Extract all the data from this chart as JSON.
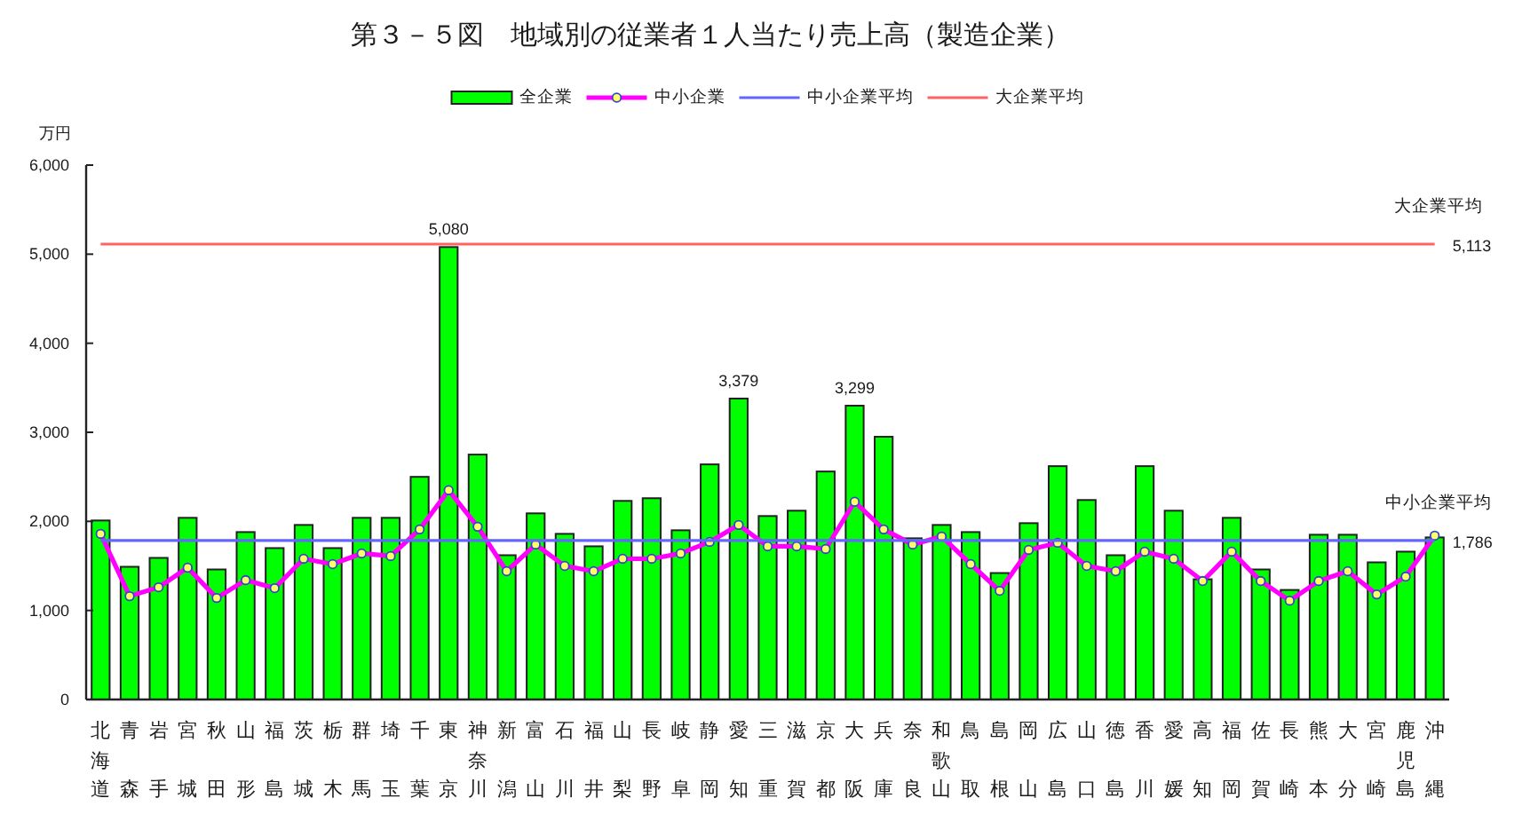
{
  "chart_data": {
    "type": "bar",
    "title": "第３－５図　地域別の従業者１人当たり売上高（製造企業）",
    "ylabel": "万円",
    "categories": [
      "北海道",
      "青森",
      "岩手",
      "宮城",
      "秋田",
      "山形",
      "福島",
      "茨城",
      "栃木",
      "群馬",
      "埼玉",
      "千葉",
      "東京",
      "神奈川",
      "新潟",
      "富山",
      "石川",
      "福井",
      "山梨",
      "長野",
      "岐阜",
      "静岡",
      "愛知",
      "三重",
      "滋賀",
      "京都",
      "大阪",
      "兵庫",
      "奈良",
      "和歌山",
      "鳥取",
      "島根",
      "岡山",
      "広島",
      "山口",
      "徳島",
      "香川",
      "愛媛",
      "高知",
      "福岡",
      "佐賀",
      "長崎",
      "熊本",
      "大分",
      "宮崎",
      "鹿児島",
      "沖縄"
    ],
    "series": [
      {
        "name": "全企業",
        "color": "#00ff00",
        "values": [
          2010,
          1490,
          1590,
          2040,
          1460,
          1880,
          1700,
          1960,
          1700,
          2040,
          2040,
          2500,
          5080,
          2750,
          1620,
          2090,
          1860,
          1720,
          2230,
          2260,
          1900,
          2640,
          3379,
          2060,
          2120,
          2560,
          3299,
          2950,
          1810,
          1960,
          1880,
          1420,
          1980,
          2620,
          2240,
          1620,
          2620,
          2120,
          1350,
          2040,
          1460,
          1230,
          1850,
          1850,
          1540,
          1660,
          1820
        ],
        "value_labels": [
          null,
          null,
          null,
          null,
          null,
          null,
          null,
          null,
          null,
          null,
          null,
          null,
          "5,080",
          null,
          null,
          null,
          null,
          null,
          null,
          null,
          null,
          null,
          "3,379",
          null,
          null,
          null,
          "3,299",
          null,
          null,
          null,
          null,
          null,
          null,
          null,
          null,
          null,
          null,
          null,
          null,
          null,
          null,
          null,
          null,
          null,
          null,
          null,
          null
        ]
      },
      {
        "name": "中小企業",
        "type": "line",
        "color": "#ff00ff",
        "values": [
          1860,
          1160,
          1260,
          1480,
          1140,
          1340,
          1250,
          1580,
          1520,
          1640,
          1610,
          1910,
          2350,
          1940,
          1440,
          1740,
          1500,
          1440,
          1580,
          1580,
          1640,
          1770,
          1960,
          1720,
          1720,
          1690,
          2220,
          1910,
          1740,
          1830,
          1520,
          1220,
          1680,
          1760,
          1500,
          1440,
          1660,
          1580,
          1330,
          1660,
          1330,
          1110,
          1330,
          1440,
          1180,
          1380,
          1840
        ]
      }
    ],
    "ylim": [
      0,
      6000
    ],
    "yticks": [
      0,
      {
        "value": 1000,
        "label": "1,000"
      },
      {
        "value": 2000,
        "label": "2,000"
      },
      {
        "value": 3000,
        "label": "3,000"
      },
      {
        "value": 4000,
        "label": "4,000"
      },
      {
        "value": 5000,
        "label": "5,000"
      },
      {
        "value": 6000,
        "label": "6,000"
      }
    ],
    "ref_lines": [
      {
        "axis": "y",
        "value": 1786,
        "label": "中小企業平均",
        "color": "#6464ff"
      },
      {
        "axis": "y",
        "value": 5113,
        "label": "大企業平均",
        "color": "#ff6464"
      }
    ],
    "annotations": [
      "1,786",
      "5,113"
    ],
    "legend": "top",
    "marker": "circle"
  }
}
